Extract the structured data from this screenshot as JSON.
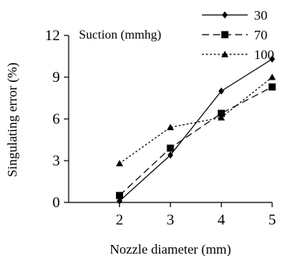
{
  "chart_data": {
    "type": "line",
    "xlabel": "Nozzle diameter (mm)",
    "ylabel": "Singulating error (%)",
    "x": [
      2,
      3,
      4,
      5
    ],
    "xticks": [
      "2",
      "3",
      "4",
      "5"
    ],
    "xlim": [
      1,
      5
    ],
    "ylim": [
      0,
      12
    ],
    "yticks": [
      "0",
      "3",
      "6",
      "9",
      "12"
    ],
    "grid": false,
    "legend": {
      "title": "Suction (mmhg)",
      "position": "top-right"
    },
    "series": [
      {
        "name": "30",
        "values": [
          0.1,
          3.4,
          8.0,
          10.3
        ],
        "color": "#000000",
        "line_style": "solid",
        "marker": "diamond"
      },
      {
        "name": "70",
        "values": [
          0.5,
          3.9,
          6.4,
          8.3
        ],
        "color": "#000000",
        "line_style": "dashed",
        "marker": "square"
      },
      {
        "name": "100",
        "values": [
          2.8,
          5.4,
          6.1,
          9.0
        ],
        "color": "#000000",
        "line_style": "dotted",
        "marker": "triangle"
      }
    ]
  }
}
